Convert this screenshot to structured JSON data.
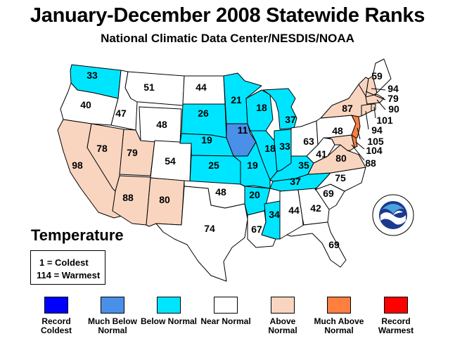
{
  "title": "January-December 2008 Statewide Ranks",
  "subtitle": "National Climatic Data Center/NESDIS/NOAA",
  "temperature_label": "Temperature",
  "scale": {
    "coldest": "1 = Coldest",
    "warmest": "114 = Warmest"
  },
  "colors": {
    "record_coldest": "#0000ff",
    "much_below": "#4a90e8",
    "below": "#00e5ff",
    "near": "#ffffff",
    "above": "#f9d5c0",
    "much_above": "#ff7f3f",
    "record_warmest": "#ff0000"
  },
  "legend": [
    {
      "label": "Record Coldest",
      "color": "#0000ff"
    },
    {
      "label": "Much Below Normal",
      "color": "#4a90e8"
    },
    {
      "label": "Below Normal",
      "color": "#00e5ff"
    },
    {
      "label": "Near Normal",
      "color": "#ffffff"
    },
    {
      "label": "Above Normal",
      "color": "#f9d5c0"
    },
    {
      "label": "Much Above Normal",
      "color": "#ff7f3f"
    },
    {
      "label": "Record Warmest",
      "color": "#ff0000"
    }
  ],
  "states": [
    {
      "state": "WA",
      "rank": "33",
      "category": "below"
    },
    {
      "state": "OR",
      "rank": "40",
      "category": "near"
    },
    {
      "state": "ID",
      "rank": "47",
      "category": "near"
    },
    {
      "state": "MT",
      "rank": "51",
      "category": "near"
    },
    {
      "state": "WY",
      "rank": "48",
      "category": "near"
    },
    {
      "state": "CA",
      "rank": "98",
      "category": "above"
    },
    {
      "state": "NV",
      "rank": "78",
      "category": "above"
    },
    {
      "state": "UT",
      "rank": "79",
      "category": "above"
    },
    {
      "state": "CO",
      "rank": "54",
      "category": "near"
    },
    {
      "state": "AZ",
      "rank": "88",
      "category": "above"
    },
    {
      "state": "NM",
      "rank": "80",
      "category": "above"
    },
    {
      "state": "ND",
      "rank": "44",
      "category": "near"
    },
    {
      "state": "SD",
      "rank": "26",
      "category": "below"
    },
    {
      "state": "NE",
      "rank": "19",
      "category": "below"
    },
    {
      "state": "KS",
      "rank": "25",
      "category": "below"
    },
    {
      "state": "OK",
      "rank": "48",
      "category": "near"
    },
    {
      "state": "TX",
      "rank": "74",
      "category": "near"
    },
    {
      "state": "MN",
      "rank": "21",
      "category": "below"
    },
    {
      "state": "IA",
      "rank": "11",
      "category": "much_below"
    },
    {
      "state": "MO",
      "rank": "19",
      "category": "below"
    },
    {
      "state": "AR",
      "rank": "20",
      "category": "below"
    },
    {
      "state": "LA",
      "rank": "67",
      "category": "near"
    },
    {
      "state": "WI",
      "rank": "18",
      "category": "below"
    },
    {
      "state": "IL",
      "rank": "18",
      "category": "below"
    },
    {
      "state": "MS",
      "rank": "34",
      "category": "below"
    },
    {
      "state": "MI",
      "rank": "37",
      "category": "below"
    },
    {
      "state": "IN",
      "rank": "33",
      "category": "below"
    },
    {
      "state": "KY",
      "rank": "35",
      "category": "below"
    },
    {
      "state": "TN",
      "rank": "37",
      "category": "below"
    },
    {
      "state": "AL",
      "rank": "44",
      "category": "near"
    },
    {
      "state": "OH",
      "rank": "63",
      "category": "near"
    },
    {
      "state": "WV",
      "rank": "41",
      "category": "near"
    },
    {
      "state": "VA",
      "rank": "80",
      "category": "above"
    },
    {
      "state": "NC",
      "rank": "75",
      "category": "near"
    },
    {
      "state": "SC",
      "rank": "69",
      "category": "near"
    },
    {
      "state": "GA",
      "rank": "42",
      "category": "near"
    },
    {
      "state": "FL",
      "rank": "69",
      "category": "near"
    },
    {
      "state": "PA",
      "rank": "48",
      "category": "near"
    },
    {
      "state": "NY",
      "rank": "87",
      "category": "above"
    },
    {
      "state": "ME",
      "rank": "59",
      "category": "near"
    },
    {
      "state": "NH",
      "rank": "94",
      "category": "above"
    },
    {
      "state": "VT",
      "rank": "79",
      "category": "above"
    },
    {
      "state": "MA",
      "rank": "90",
      "category": "above"
    },
    {
      "state": "RI",
      "rank": "101",
      "category": "above"
    },
    {
      "state": "CT",
      "rank": "94",
      "category": "above"
    },
    {
      "state": "NJ",
      "rank": "105",
      "category": "much_above"
    },
    {
      "state": "DE",
      "rank": "104",
      "category": "much_above"
    },
    {
      "state": "MD",
      "rank": "88",
      "category": "above"
    }
  ]
}
